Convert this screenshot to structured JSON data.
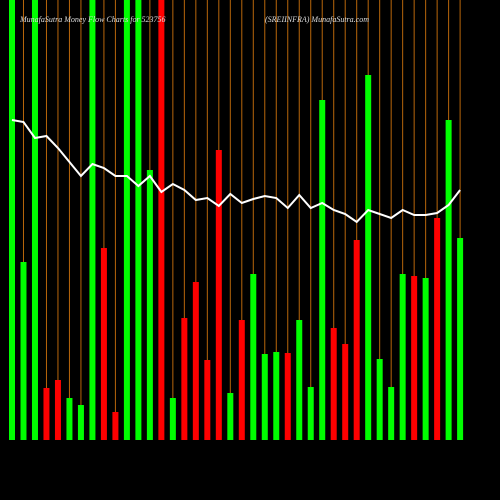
{
  "chart_data": {
    "type": "bar",
    "title": "MunafaSutra  Money Flow  Charts for 523756",
    "subtitle": "(SREIINFRA) MunafaSutra.com",
    "categories": [
      null,
      null,
      null,
      null,
      null,
      null,
      null,
      null,
      null,
      null,
      null,
      null,
      null,
      null,
      null,
      null,
      null,
      null,
      null,
      null,
      null,
      null,
      null,
      null,
      null,
      null,
      null,
      null,
      null,
      null,
      null,
      null,
      null,
      null,
      null,
      null,
      null,
      null,
      null,
      null
    ],
    "values": [
      440,
      178,
      440,
      52,
      60,
      42,
      35,
      440,
      192,
      28,
      440,
      440,
      270,
      440,
      42,
      122,
      158,
      80,
      290,
      47,
      120,
      166,
      86,
      88,
      87,
      120,
      53,
      340,
      112,
      96,
      200,
      365,
      81,
      53,
      166,
      164,
      162,
      222,
      320,
      202
    ],
    "bar_colors": [
      "#00ff00",
      "#00ff00",
      "#00ff00",
      "#ff0000",
      "#ff0000",
      "#00ff00",
      "#00ff00",
      "#00ff00",
      "#ff0000",
      "#ff0000",
      "#00ff00",
      "#00ff00",
      "#00ff00",
      "#ff0000",
      "#00ff00",
      "#ff0000",
      "#ff0000",
      "#ff0000",
      "#ff0000",
      "#00ff00",
      "#ff0000",
      "#00ff00",
      "#00ff00",
      "#00ff00",
      "#ff0000",
      "#00ff00",
      "#00ff00",
      "#00ff00",
      "#ff0000",
      "#ff0000",
      "#ff0000",
      "#00ff00",
      "#00ff00",
      "#00ff00",
      "#00ff00",
      "#ff0000",
      "#00ff00",
      "#ff0000",
      "#00ff00",
      "#00ff00"
    ],
    "line": {
      "color": "#ffffff",
      "values": [
        320,
        318,
        302,
        304,
        292,
        278,
        264,
        276,
        272,
        264,
        264,
        254,
        264,
        248,
        256,
        250,
        240,
        242,
        234,
        246,
        237,
        241,
        244,
        242,
        232,
        245,
        232,
        237,
        230,
        226,
        218,
        230,
        226,
        222,
        230,
        225,
        225,
        227,
        235,
        250
      ]
    },
    "ylim": [
      0,
      440
    ],
    "grid": true,
    "grid_color": "#b8660b"
  }
}
